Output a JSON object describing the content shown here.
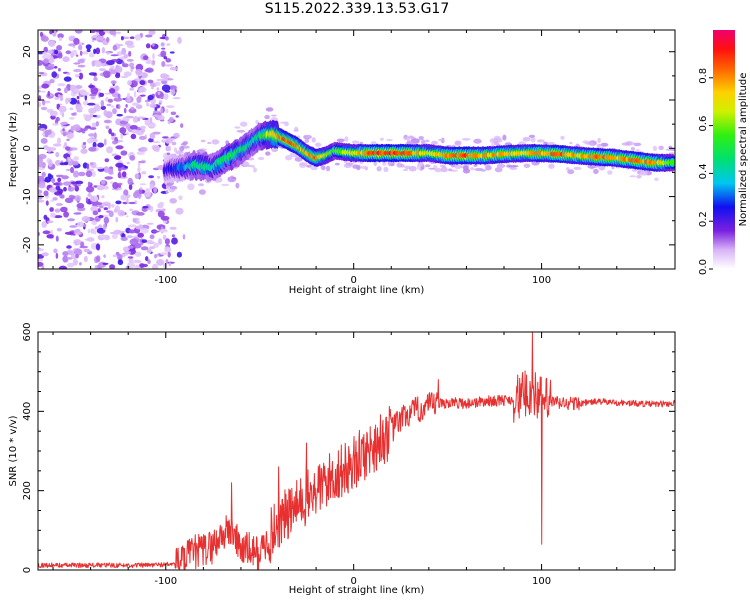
{
  "title": "S115.2022.339.13.53.G17",
  "chart_data": [
    {
      "type": "heatmap",
      "xlabel": "Height of straight line (km)",
      "ylabel": "Frequency (Hz)",
      "xlim": [
        -168,
        171
      ],
      "ylim": [
        -25,
        24.5
      ],
      "xticks": [
        -100,
        0,
        100
      ],
      "yticks": [
        -20,
        -10,
        0,
        10,
        20
      ],
      "colorbar": {
        "label": "Normalized spectral amplitude",
        "range": [
          0,
          1
        ],
        "ticks": [
          "0.0",
          "0.2",
          "0.4",
          "0.6",
          "0.8"
        ],
        "colormap": "rainbow (white → purple → blue → cyan → green → yellow → orange → red → pink)"
      },
      "noise_region": {
        "x_range": [
          -168,
          -95
        ],
        "freq_range": [
          -25,
          24.5
        ],
        "amplitude": 0.1
      },
      "ridge": [
        {
          "x": -100,
          "freq": -4.5,
          "amp": 0.25
        },
        {
          "x": -90,
          "freq": -4.0,
          "amp": 0.35
        },
        {
          "x": -85,
          "freq": -3.5,
          "amp": 0.5
        },
        {
          "x": -75,
          "freq": -4.0,
          "amp": 0.45
        },
        {
          "x": -65,
          "freq": -1.5,
          "amp": 0.55
        },
        {
          "x": -60,
          "freq": -0.5,
          "amp": 0.5
        },
        {
          "x": -55,
          "freq": 1.0,
          "amp": 0.45
        },
        {
          "x": -50,
          "freq": 2.5,
          "amp": 0.5
        },
        {
          "x": -45,
          "freq": 3.0,
          "amp": 0.7
        },
        {
          "x": -40,
          "freq": 2.5,
          "amp": 0.85
        },
        {
          "x": -35,
          "freq": 1.5,
          "amp": 0.95
        },
        {
          "x": -30,
          "freq": 0.5,
          "amp": 0.9
        },
        {
          "x": -25,
          "freq": -1.0,
          "amp": 0.8
        },
        {
          "x": -20,
          "freq": -2.0,
          "amp": 0.9
        },
        {
          "x": -15,
          "freq": -1.5,
          "amp": 0.7
        },
        {
          "x": -10,
          "freq": -0.5,
          "amp": 0.6
        },
        {
          "x": 0,
          "freq": -1.0,
          "amp": 0.75
        },
        {
          "x": 10,
          "freq": -1.0,
          "amp": 0.95
        },
        {
          "x": 20,
          "freq": -1.0,
          "amp": 0.95
        },
        {
          "x": 30,
          "freq": -1.0,
          "amp": 0.9
        },
        {
          "x": 40,
          "freq": -1.0,
          "amp": 0.7
        },
        {
          "x": 50,
          "freq": -1.5,
          "amp": 0.85
        },
        {
          "x": 60,
          "freq": -1.5,
          "amp": 0.95
        },
        {
          "x": 70,
          "freq": -1.5,
          "amp": 0.85
        },
        {
          "x": 80,
          "freq": -1.2,
          "amp": 0.8
        },
        {
          "x": 90,
          "freq": -1.0,
          "amp": 0.75
        },
        {
          "x": 100,
          "freq": -1.0,
          "amp": 0.85
        },
        {
          "x": 110,
          "freq": -1.2,
          "amp": 0.9
        },
        {
          "x": 120,
          "freq": -1.5,
          "amp": 0.8
        },
        {
          "x": 130,
          "freq": -1.8,
          "amp": 0.95
        },
        {
          "x": 140,
          "freq": -2.0,
          "amp": 0.8
        },
        {
          "x": 150,
          "freq": -2.5,
          "amp": 0.9
        },
        {
          "x": 160,
          "freq": -3.0,
          "amp": 0.85
        },
        {
          "x": 171,
          "freq": -3.0,
          "amp": 0.6
        }
      ]
    },
    {
      "type": "line",
      "xlabel": "Height of straight line (km)",
      "ylabel": "SNR (10 * v/v)",
      "xlim": [
        -168,
        171
      ],
      "ylim": [
        0,
        600
      ],
      "xticks": [
        -100,
        0,
        100
      ],
      "yticks": [
        0,
        200,
        400,
        600
      ],
      "series_color": "#e83030",
      "x": [
        -168,
        -150,
        -130,
        -110,
        -95,
        -90,
        -85,
        -80,
        -75,
        -70,
        -65,
        -60,
        -55,
        -50,
        -45,
        -40,
        -35,
        -30,
        -25,
        -20,
        -15,
        -10,
        -5,
        0,
        5,
        10,
        15,
        20,
        25,
        30,
        35,
        40,
        45,
        50,
        60,
        70,
        80,
        85,
        90,
        95,
        100,
        105,
        110,
        120,
        130,
        140,
        150,
        160,
        171
      ],
      "y": [
        12,
        12,
        12,
        12,
        15,
        25,
        45,
        50,
        60,
        90,
        100,
        55,
        50,
        40,
        80,
        120,
        140,
        160,
        180,
        200,
        220,
        240,
        250,
        270,
        290,
        310,
        330,
        350,
        380,
        395,
        405,
        412,
        418,
        422,
        420,
        425,
        428,
        430,
        440,
        450,
        430,
        425,
        420,
        420,
        425,
        422,
        420,
        418,
        420
      ],
      "spikes": [
        {
          "x": -65,
          "y": 220
        },
        {
          "x": -40,
          "y": 260
        },
        {
          "x": -25,
          "y": 320
        },
        {
          "x": 45,
          "y": 480
        },
        {
          "x": 95,
          "y": 600
        },
        {
          "x": 100,
          "y": 65
        },
        {
          "x": 115,
          "y": 420
        }
      ]
    }
  ]
}
